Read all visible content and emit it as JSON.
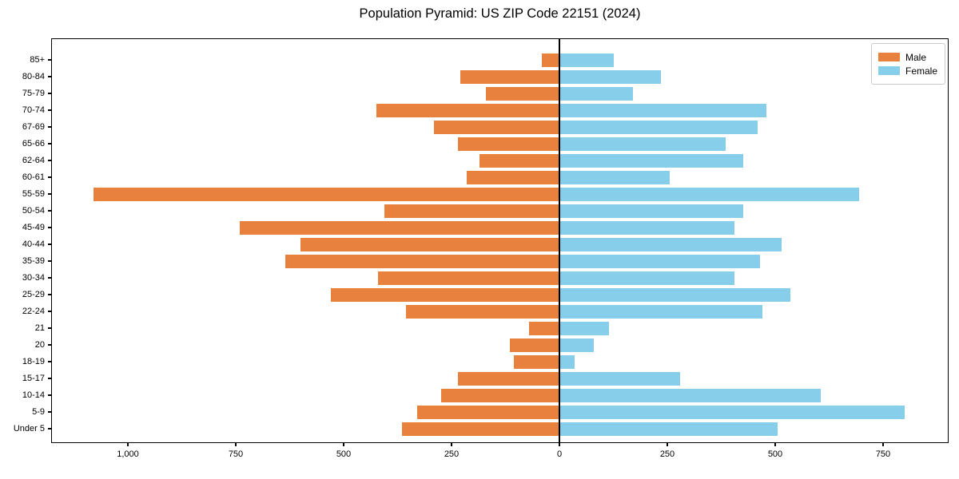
{
  "title": "Population Pyramid: US ZIP Code 22151 (2024)",
  "legend": {
    "male_label": "Male",
    "female_label": "Female"
  },
  "colors": {
    "male": "#E8813E",
    "female": "#87CEEB",
    "axis": "#000000"
  },
  "chart_data": {
    "type": "bar",
    "subtype": "population-pyramid",
    "title": "Population Pyramid: US ZIP Code 22151 (2024)",
    "grid": false,
    "legend_position": "upper right",
    "categories": [
      "85+",
      "80-84",
      "75-79",
      "70-74",
      "67-69",
      "65-66",
      "62-64",
      "60-61",
      "55-59",
      "50-54",
      "45-49",
      "40-44",
      "35-39",
      "30-34",
      "25-29",
      "22-24",
      "21",
      "20",
      "18-19",
      "15-17",
      "10-14",
      "5-9",
      "Under 5"
    ],
    "series": [
      {
        "name": "Male",
        "side": "left",
        "color": "#E8813E",
        "values": [
          40,
          230,
          170,
          425,
          290,
          235,
          185,
          215,
          1080,
          405,
          740,
          600,
          635,
          420,
          530,
          355,
          70,
          115,
          105,
          235,
          275,
          330,
          365
        ]
      },
      {
        "name": "Female",
        "side": "right",
        "color": "#87CEEB",
        "values": [
          125,
          235,
          170,
          480,
          460,
          385,
          425,
          255,
          695,
          425,
          405,
          515,
          465,
          405,
          535,
          470,
          115,
          80,
          35,
          280,
          605,
          800,
          505
        ]
      }
    ],
    "x_tick_values": [
      -1000,
      -750,
      -500,
      -250,
      0,
      250,
      500,
      750
    ],
    "x_tick_labels": [
      "1,000",
      "750",
      "500",
      "250",
      "0",
      "250",
      "500",
      "750"
    ],
    "xlim": [
      -1176,
      900
    ]
  }
}
